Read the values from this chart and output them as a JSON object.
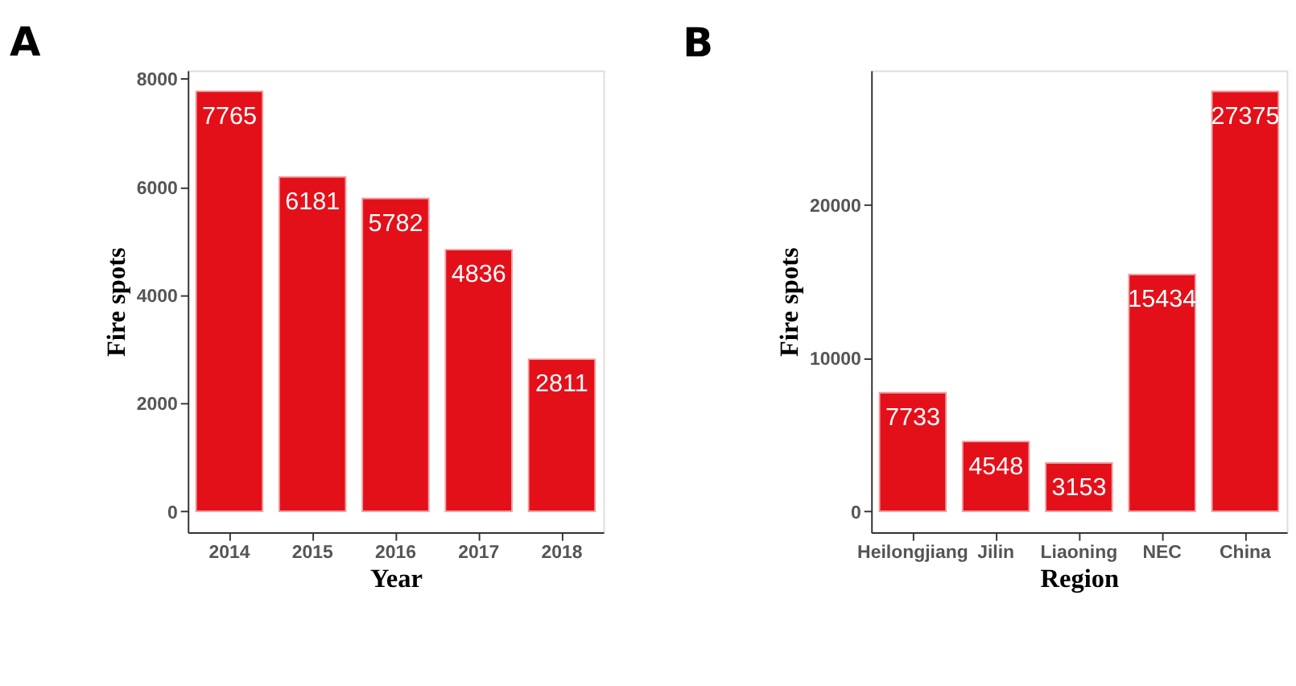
{
  "chart_data": [
    {
      "type": "bar",
      "title": "A",
      "xlabel": "Year",
      "ylabel": "Fire spots",
      "categories": [
        "2014",
        "2015",
        "2016",
        "2017",
        "2018"
      ],
      "values": [
        7765,
        6181,
        5782,
        4836,
        2811
      ],
      "color": "#e3101a",
      "ylim": [
        -390,
        8150
      ],
      "yticks": [
        0,
        2000,
        4000,
        6000,
        8000
      ],
      "data_labels": true,
      "grid": false
    },
    {
      "type": "bar",
      "title": "B",
      "xlabel": "Region",
      "ylabel": "Fire spots",
      "categories": [
        "Heilongjiang",
        "Jilin",
        "Liaoning",
        "NEC",
        "China"
      ],
      "values": [
        7733,
        4548,
        3153,
        15434,
        27375
      ],
      "color": "#e3101a",
      "ylim": [
        -1370,
        28740
      ],
      "yticks": [
        0,
        10000,
        20000
      ],
      "data_labels": true,
      "grid": false
    }
  ]
}
